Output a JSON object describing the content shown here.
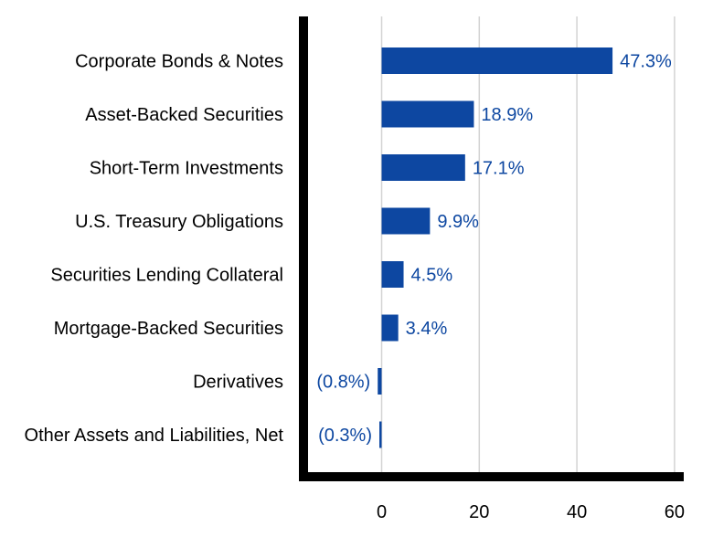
{
  "chart_data": {
    "type": "bar",
    "orientation": "horizontal",
    "categories": [
      "Corporate Bonds & Notes",
      "Asset-Backed Securities",
      "Short-Term Investments",
      "U.S. Treasury Obligations",
      "Securities Lending Collateral",
      "Mortgage-Backed Securities",
      "Derivatives",
      "Other Assets and Liabilities, Net"
    ],
    "values": [
      47.3,
      18.9,
      17.1,
      9.9,
      4.5,
      3.4,
      -0.8,
      -0.3
    ],
    "data_labels": [
      "47.3%",
      "18.9%",
      "17.1%",
      "9.9%",
      "4.5%",
      "3.4%",
      "(0.8%)",
      "(0.3%)"
    ],
    "x_ticks": [
      0,
      20,
      40,
      60
    ],
    "x_tick_labels": [
      "0",
      "20",
      "40",
      "60"
    ],
    "xlim": [
      -17,
      62
    ],
    "grid": "vertical",
    "bar_color": "#0d47a1",
    "label_color": "#0d47a1",
    "grid_color": "#d3d3d3",
    "axis_color": "#000000",
    "title": "",
    "xlabel": "",
    "ylabel": ""
  }
}
